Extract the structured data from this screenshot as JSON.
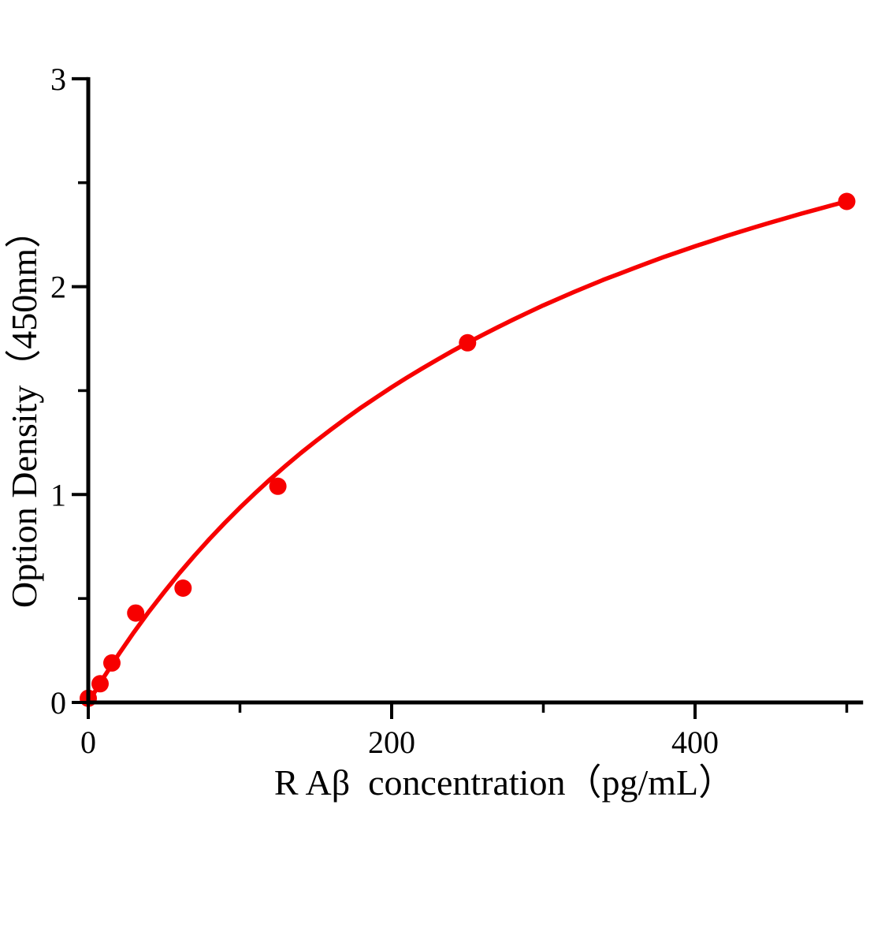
{
  "chart_data": {
    "type": "scatter",
    "title": "",
    "xlabel": "R Aβ  concentration（pg/mL）",
    "ylabel": "Option Density（450nm）",
    "xlim": [
      0,
      510
    ],
    "ylim": [
      0,
      3
    ],
    "grid": "off",
    "legend": "none",
    "axis_color": "#000000",
    "accent_color": "#f70000",
    "x_major_ticks": [
      0,
      200,
      400
    ],
    "x_minor_ticks": [
      100,
      300,
      500
    ],
    "y_major_ticks": [
      0,
      1,
      2,
      3
    ],
    "y_minor_ticks": [
      0.5,
      1.5,
      2.5
    ],
    "series": [
      {
        "name": "standard-points",
        "type": "scatter",
        "marker": "circle",
        "color": "#f70000",
        "points": [
          [
            0,
            0.02
          ],
          [
            7.8,
            0.09
          ],
          [
            15.6,
            0.19
          ],
          [
            31.25,
            0.43
          ],
          [
            62.5,
            0.55
          ],
          [
            125,
            1.04
          ],
          [
            250,
            1.73
          ],
          [
            500,
            2.41
          ]
        ]
      },
      {
        "name": "fit-curve",
        "type": "line",
        "color": "#f70000",
        "points": [
          [
            0,
            0
          ],
          [
            10,
            0.119
          ],
          [
            20,
            0.231
          ],
          [
            30,
            0.337
          ],
          [
            40,
            0.437
          ],
          [
            50,
            0.531
          ],
          [
            60,
            0.621
          ],
          [
            70,
            0.706
          ],
          [
            80,
            0.787
          ],
          [
            90,
            0.864
          ],
          [
            100,
            0.937
          ],
          [
            110,
            1.007
          ],
          [
            120,
            1.074
          ],
          [
            130,
            1.138
          ],
          [
            140,
            1.199
          ],
          [
            150,
            1.257
          ],
          [
            160,
            1.313
          ],
          [
            170,
            1.367
          ],
          [
            180,
            1.419
          ],
          [
            190,
            1.468
          ],
          [
            200,
            1.516
          ],
          [
            210,
            1.562
          ],
          [
            220,
            1.606
          ],
          [
            230,
            1.649
          ],
          [
            240,
            1.69
          ],
          [
            250,
            1.73
          ],
          [
            260,
            1.768
          ],
          [
            270,
            1.805
          ],
          [
            280,
            1.841
          ],
          [
            290,
            1.876
          ],
          [
            300,
            1.91
          ],
          [
            310,
            1.942
          ],
          [
            320,
            1.974
          ],
          [
            330,
            2.004
          ],
          [
            340,
            2.034
          ],
          [
            350,
            2.062
          ],
          [
            360,
            2.09
          ],
          [
            370,
            2.117
          ],
          [
            380,
            2.144
          ],
          [
            390,
            2.169
          ],
          [
            400,
            2.194
          ],
          [
            410,
            2.218
          ],
          [
            420,
            2.242
          ],
          [
            430,
            2.265
          ],
          [
            440,
            2.287
          ],
          [
            450,
            2.309
          ],
          [
            460,
            2.33
          ],
          [
            470,
            2.351
          ],
          [
            480,
            2.371
          ],
          [
            490,
            2.391
          ],
          [
            500,
            2.41
          ]
        ]
      }
    ]
  }
}
